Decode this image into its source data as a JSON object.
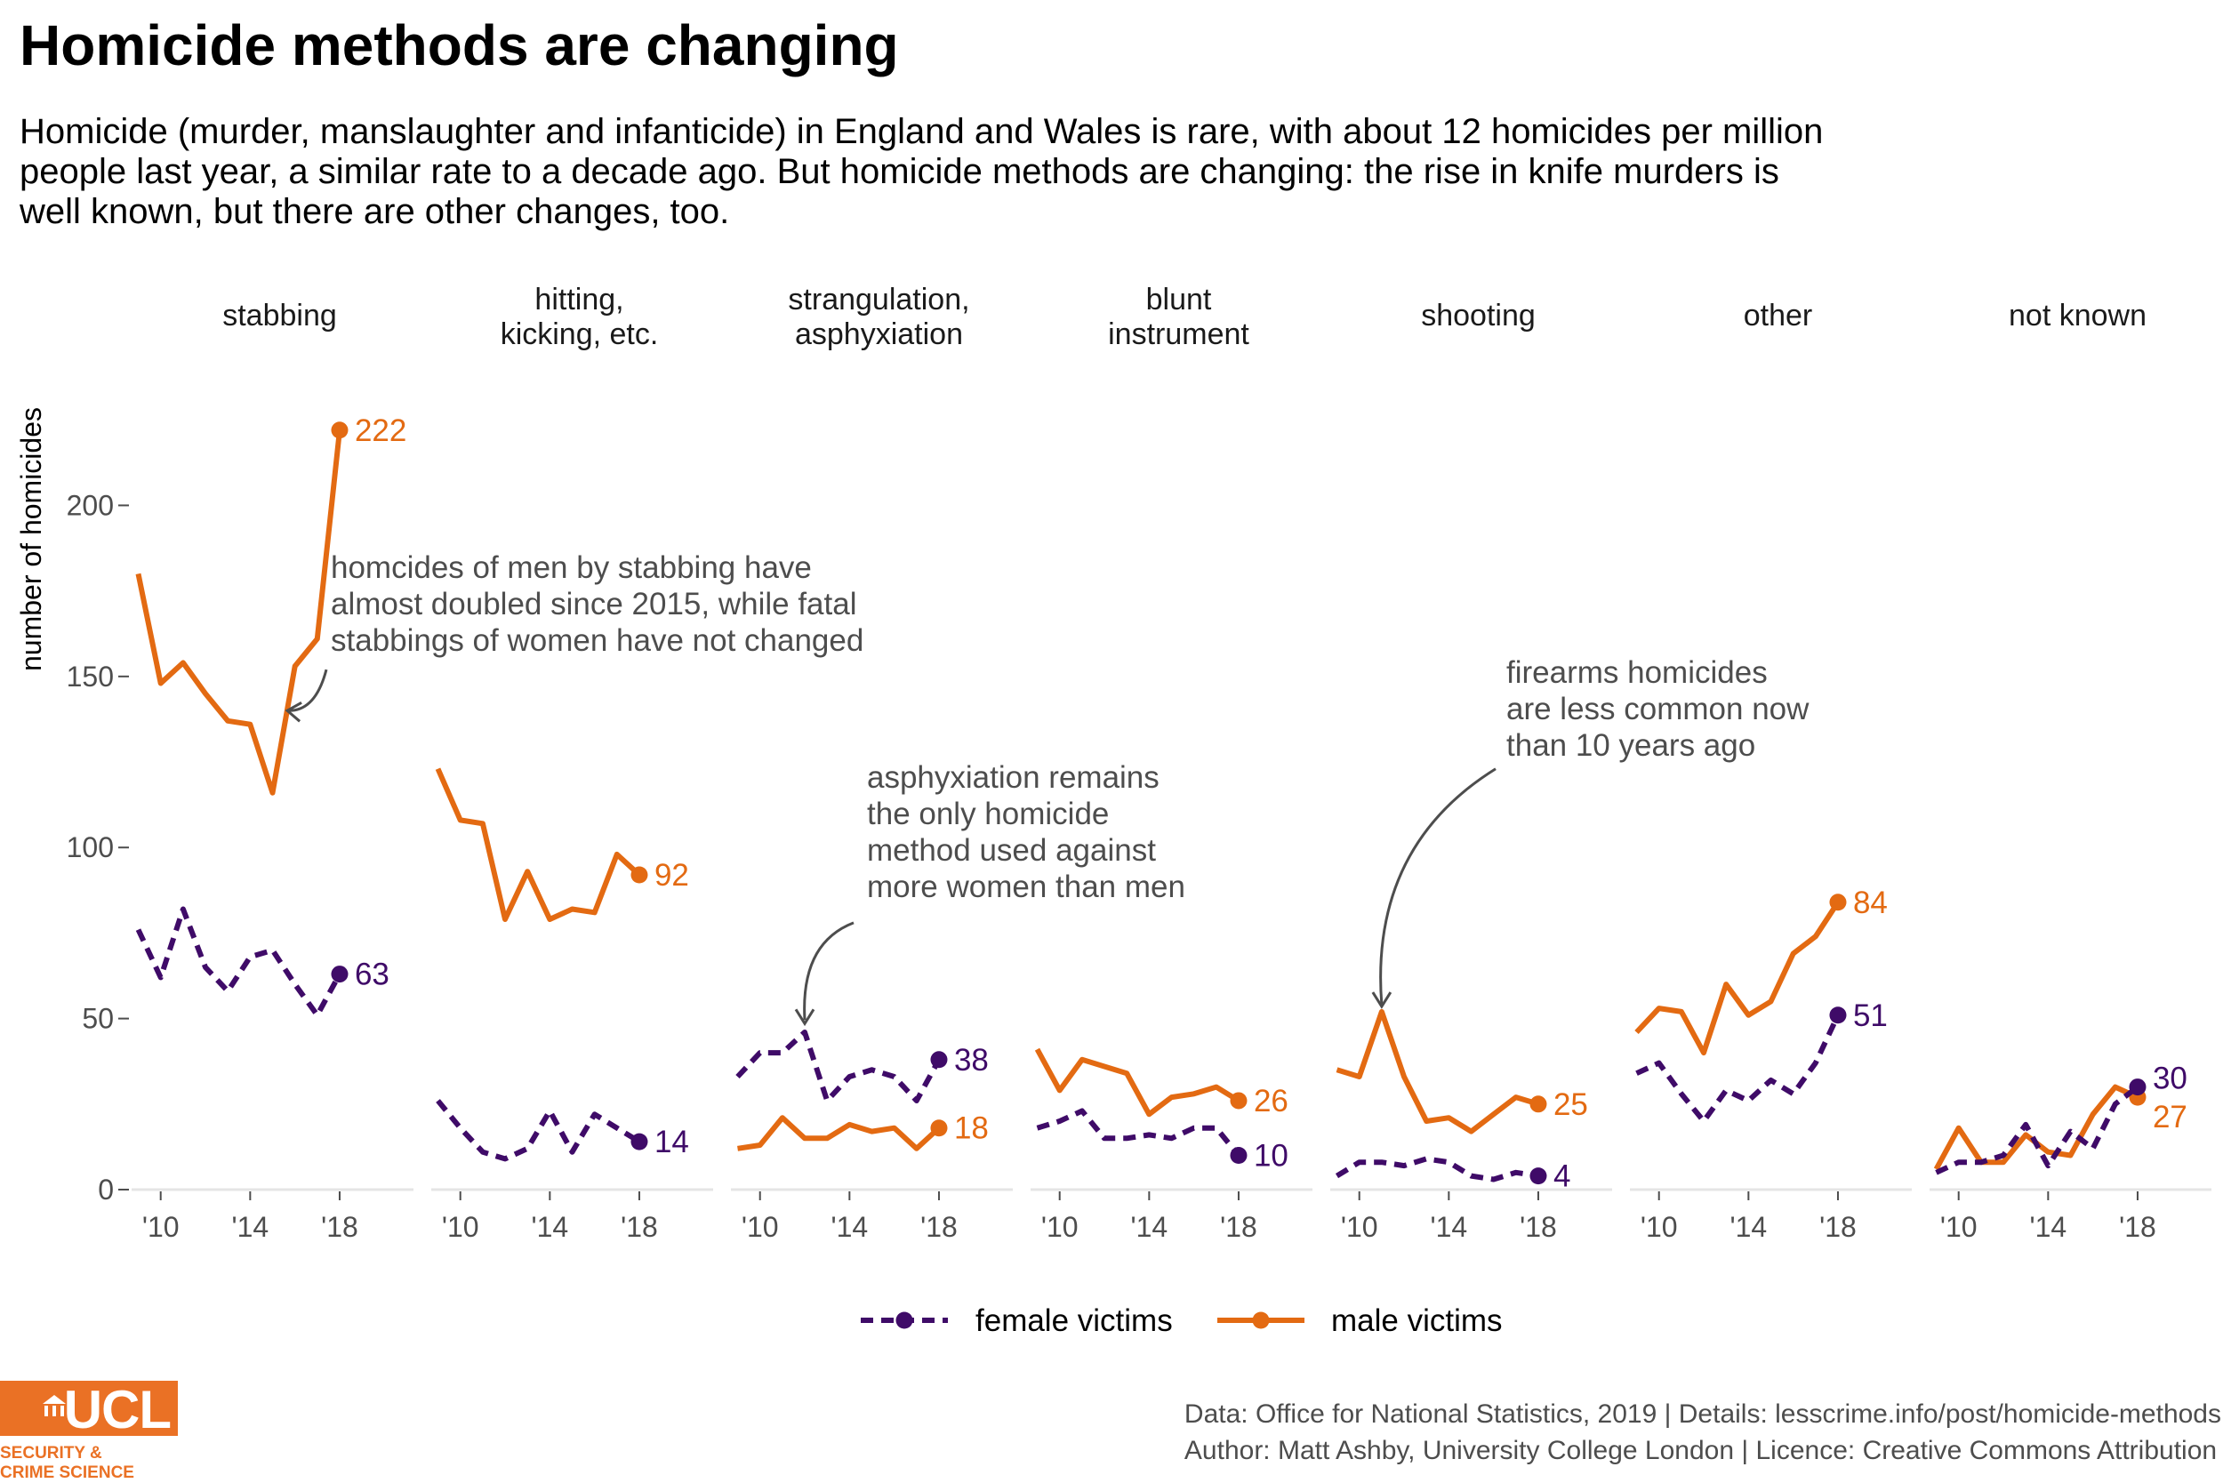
{
  "page": {
    "title": "Homicide methods are changing",
    "subtitle": "Homicide (murder, manslaughter and infanticide) in England and Wales is rare, with about 12 homicides per million people last year, a similar rate to a decade ago. But homicide methods are changing: the rise in knife murders is well known, but there are other changes, too.",
    "footer_line1": "Data: Office for National Statistics, 2019 |  Details: lesscrime.info/post/homicide-methods",
    "footer_line2": "Author: Matt Ashby, University College London |  Licence: Creative Commons Attribution",
    "logo_text": "UCL",
    "logo_subtext_1": "SECURITY &",
    "logo_subtext_2": "CRIME SCIENCE"
  },
  "colors": {
    "female": "#3f0b68",
    "male": "#e36a12",
    "axis_text": "#4d4d4d",
    "axis_line": "#e5e5e5",
    "annotation": "#4d4d4d",
    "brand": "#ea7125"
  },
  "chart_data": {
    "type": "line",
    "ylabel": "number of homicides",
    "ylim": [
      0,
      230
    ],
    "yticks": [
      0,
      50,
      100,
      150,
      200
    ],
    "x": [
      2009,
      2010,
      2011,
      2012,
      2013,
      2014,
      2015,
      2016,
      2017,
      2018
    ],
    "xticks": [
      2010,
      2014,
      2018
    ],
    "xtick_labels": [
      "'10",
      "'14",
      "'18"
    ],
    "xlim": [
      2008.7,
      2021.3
    ],
    "legend": {
      "position": "bottom",
      "entries": [
        {
          "series": "female",
          "label": "female victims",
          "linestyle": "dashed"
        },
        {
          "series": "male",
          "label": "male victims",
          "linestyle": "solid"
        }
      ]
    },
    "panels": [
      {
        "title": [
          "stabbing"
        ],
        "female": [
          76,
          62,
          82,
          65,
          58,
          68,
          70,
          60,
          51,
          63
        ],
        "male": [
          180,
          148,
          154,
          145,
          137,
          136,
          116,
          153,
          161,
          222
        ]
      },
      {
        "title": [
          "hitting,",
          "kicking, etc."
        ],
        "female": [
          26,
          18,
          11,
          9,
          12,
          23,
          11,
          22,
          18,
          14
        ],
        "male": [
          123,
          108,
          107,
          79,
          93,
          79,
          82,
          81,
          98,
          92
        ]
      },
      {
        "title": [
          "strangulation,",
          "asphyxiation"
        ],
        "female": [
          33,
          40,
          40,
          46,
          26,
          33,
          35,
          33,
          26,
          38
        ],
        "male": [
          12,
          13,
          21,
          15,
          15,
          19,
          17,
          18,
          12,
          18
        ]
      },
      {
        "title": [
          "blunt",
          "instrument"
        ],
        "female": [
          18,
          20,
          23,
          15,
          15,
          16,
          15,
          18,
          18,
          10
        ],
        "male": [
          41,
          29,
          38,
          36,
          34,
          22,
          27,
          28,
          30,
          26
        ]
      },
      {
        "title": [
          "shooting"
        ],
        "female": [
          4,
          8,
          8,
          7,
          9,
          8,
          4,
          3,
          5,
          4
        ],
        "male": [
          35,
          33,
          52,
          33,
          20,
          21,
          17,
          22,
          27,
          25
        ]
      },
      {
        "title": [
          "other"
        ],
        "female": [
          34,
          37,
          28,
          20,
          29,
          26,
          32,
          28,
          37,
          51
        ],
        "male": [
          46,
          53,
          52,
          40,
          60,
          51,
          55,
          69,
          74,
          84
        ]
      },
      {
        "title": [
          "not known"
        ],
        "female": [
          5,
          8,
          8,
          10,
          19,
          7,
          17,
          12,
          25,
          30
        ],
        "male": [
          6,
          18,
          8,
          8,
          16,
          11,
          10,
          22,
          30,
          27
        ]
      }
    ],
    "end_labels": [
      {
        "panel": 0,
        "series": "male",
        "text": "222"
      },
      {
        "panel": 0,
        "series": "female",
        "text": "63"
      },
      {
        "panel": 1,
        "series": "male",
        "text": "92"
      },
      {
        "panel": 1,
        "series": "female",
        "text": "14"
      },
      {
        "panel": 2,
        "series": "female",
        "text": "38"
      },
      {
        "panel": 2,
        "series": "male",
        "text": "18"
      },
      {
        "panel": 3,
        "series": "male",
        "text": "26"
      },
      {
        "panel": 3,
        "series": "female",
        "text": "10"
      },
      {
        "panel": 4,
        "series": "male",
        "text": "25"
      },
      {
        "panel": 4,
        "series": "female",
        "text": "4"
      },
      {
        "panel": 5,
        "series": "male",
        "text": "84"
      },
      {
        "panel": 5,
        "series": "female",
        "text": "51"
      },
      {
        "panel": 6,
        "series": "female",
        "text": "30"
      },
      {
        "panel": 6,
        "series": "male",
        "text": "27"
      }
    ],
    "annotations": [
      {
        "panel": 0,
        "lines": [
          "homcides of men by stabbing have",
          "almost doubled since 2015, while fatal",
          "stabbings of women have not changed"
        ],
        "points_to": {
          "x": 2015.5,
          "y": 140
        }
      },
      {
        "panel": 2,
        "lines": [
          "asphyxiation remains",
          "the only homicide",
          "method used against",
          "more women than men"
        ],
        "points_to": {
          "x": 2012,
          "y": 48
        }
      },
      {
        "panel": 4,
        "lines": [
          "firearms homicides",
          "are less common now",
          "than 10 years ago"
        ],
        "points_to": {
          "x": 2011,
          "y": 53
        }
      }
    ]
  }
}
